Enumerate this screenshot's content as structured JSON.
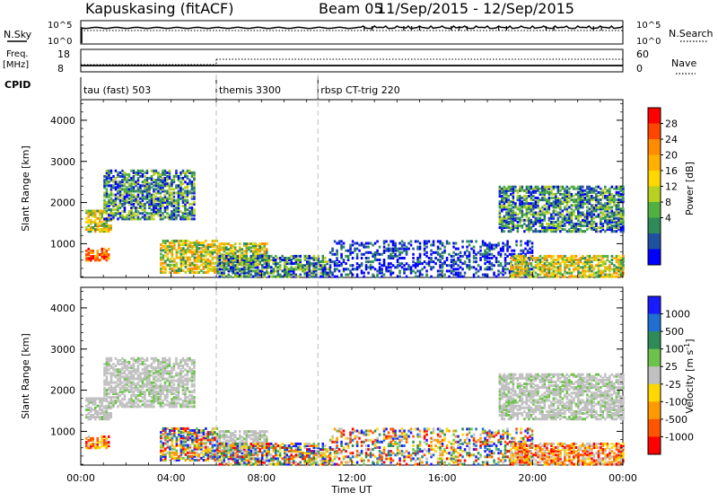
{
  "header": {
    "station": "Kapuskasing (fitACF)",
    "beam": "Beam 05",
    "dates": "11/Sep/2015 - 12/Sep/2015"
  },
  "nsky_panel": {
    "label": "N.Sky",
    "right_label": "N.Search",
    "left_ticks": [
      "10^5",
      "10^0"
    ],
    "right_ticks": [
      "10^5",
      "10^0"
    ]
  },
  "freq_panel": {
    "label_line1": "Freq.",
    "label_line2": "[MHz]",
    "right_label": "Nave",
    "left_ticks": [
      "18",
      "8"
    ],
    "right_ticks": [
      "60",
      "0"
    ]
  },
  "cpid": {
    "label": "CPID",
    "segments": [
      {
        "name": "tau (fast) 503",
        "start_hour": 0
      },
      {
        "name": "themis 3300",
        "start_hour": 6
      },
      {
        "name": "rbsp CT-trig 220",
        "start_hour": 10.5
      }
    ]
  },
  "power_scale": {
    "label": "Power [dB]",
    "ticks": [
      "28",
      "24",
      "20",
      "16",
      "12",
      "8",
      "4"
    ],
    "colors": [
      "#ff0000",
      "#ff4500",
      "#ff8c00",
      "#ffb000",
      "#ffd700",
      "#b8d020",
      "#50b040",
      "#2e8b57",
      "#2050a0",
      "#0000ff"
    ]
  },
  "velocity_scale": {
    "label": "Velocity [m s^-1]",
    "ticks": [
      "1000",
      "500",
      "100",
      "25",
      "-25",
      "-100",
      "-500",
      "-1000"
    ],
    "colors": [
      "#1a1aff",
      "#1f6fd0",
      "#2e8b57",
      "#6cc24a",
      "#c0c0c0",
      "#ffd700",
      "#ff9900",
      "#ff5500",
      "#ff0000"
    ]
  },
  "chart_data": {
    "type": "heatmap",
    "xlabel": "Time UT",
    "ylabel": "Slant Range [km]",
    "x_ticks": [
      "00:00",
      "04:00",
      "08:00",
      "12:00",
      "16:00",
      "20:00",
      "00:00"
    ],
    "y_ticks": [
      1000,
      2000,
      3000,
      4000
    ],
    "xlim_hours": [
      0,
      24
    ],
    "ylim_km": [
      180,
      4500
    ],
    "dashed_lines_hours": [
      6,
      10.5
    ],
    "scatter_regions": [
      {
        "hours": [
          0.2,
          1.2
        ],
        "km": [
          600,
          900
        ],
        "power": "high",
        "velocity": "negative"
      },
      {
        "hours": [
          0.2,
          1.3
        ],
        "km": [
          1300,
          1800
        ],
        "power": "medium",
        "velocity": "near-zero"
      },
      {
        "hours": [
          1.0,
          5.0
        ],
        "km": [
          1600,
          2800
        ],
        "power": "low-medium",
        "velocity": "near-zero"
      },
      {
        "hours": [
          3.5,
          6.0
        ],
        "km": [
          300,
          1100
        ],
        "power": "medium",
        "velocity": "mixed"
      },
      {
        "hours": [
          6.0,
          8.2
        ],
        "km": [
          500,
          1000
        ],
        "power": "medium",
        "velocity": "near-zero"
      },
      {
        "hours": [
          6.0,
          11.0
        ],
        "km": [
          200,
          700
        ],
        "power": "low-medium",
        "velocity": "mixed"
      },
      {
        "hours": [
          11.0,
          20.0
        ],
        "km": [
          200,
          1100
        ],
        "power": "low",
        "velocity": "mixed"
      },
      {
        "hours": [
          18.5,
          24.0
        ],
        "km": [
          1300,
          2400
        ],
        "power": "low-medium",
        "velocity": "near-zero"
      },
      {
        "hours": [
          19.0,
          24.0
        ],
        "km": [
          200,
          700
        ],
        "power": "medium",
        "velocity": "negative"
      }
    ]
  }
}
